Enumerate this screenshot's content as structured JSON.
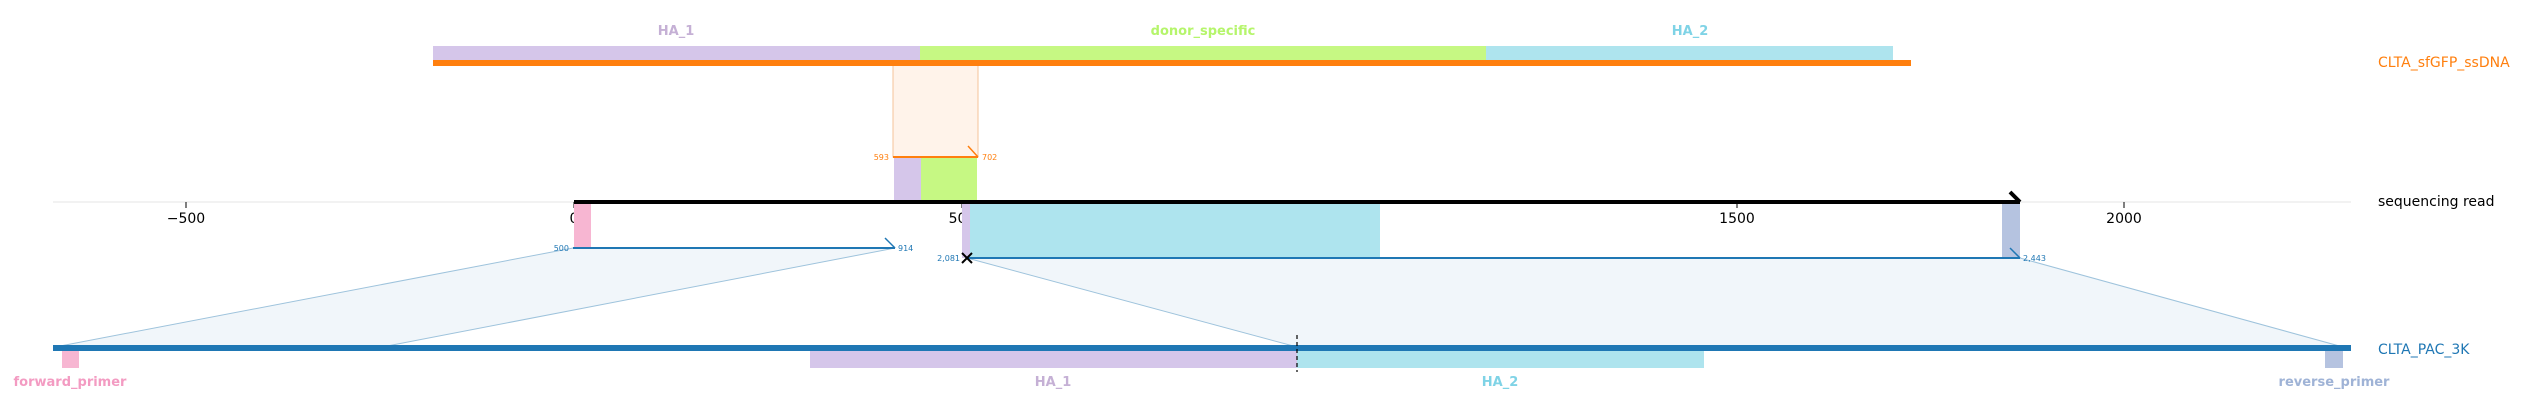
{
  "colors": {
    "orange": "#ff7f0e",
    "blue": "#1f77b4",
    "black": "#000000",
    "lavender": "#d5c6ea",
    "lavender_text": "#c5b0d5",
    "lime": "#c6f883",
    "lime_text": "#b5f56b",
    "cyan": "#aee4ee",
    "cyan_text": "#7fd3e6",
    "pink": "#f7b6d2",
    "pink_text": "#f39bc2",
    "slate": "#b5c3e0",
    "slate_text": "#9fb3d6",
    "shade": "#e8f0f6"
  },
  "donor": {
    "label": "CLTA_sfGFP_ssDNA",
    "features": [
      {
        "name": "HA_1",
        "color_key": "lavender",
        "text_key": "lavender_text"
      },
      {
        "name": "donor_specific",
        "color_key": "lime",
        "text_key": "lime_text"
      },
      {
        "name": "HA_2",
        "color_key": "cyan",
        "text_key": "cyan_text"
      }
    ],
    "alignment": {
      "start": "593",
      "end": "702"
    }
  },
  "read": {
    "label": "sequencing read",
    "axis": {
      "ticks": [
        "−500",
        "0",
        "500",
        "1000",
        "1500",
        "2000"
      ]
    },
    "alignment_left": {
      "start": "500",
      "end": "914"
    },
    "alignment_right": {
      "start": "2,081",
      "end": "2,443"
    }
  },
  "reference": {
    "label": "CLTA_PAC_3K",
    "features": [
      {
        "name": "forward_primer",
        "color_key": "pink",
        "text_key": "pink_text"
      },
      {
        "name": "HA_1",
        "color_key": "lavender",
        "text_key": "lavender_text"
      },
      {
        "name": "HA_2",
        "color_key": "cyan",
        "text_key": "cyan_text"
      },
      {
        "name": "reverse_primer",
        "color_key": "slate",
        "text_key": "slate_text"
      }
    ]
  }
}
